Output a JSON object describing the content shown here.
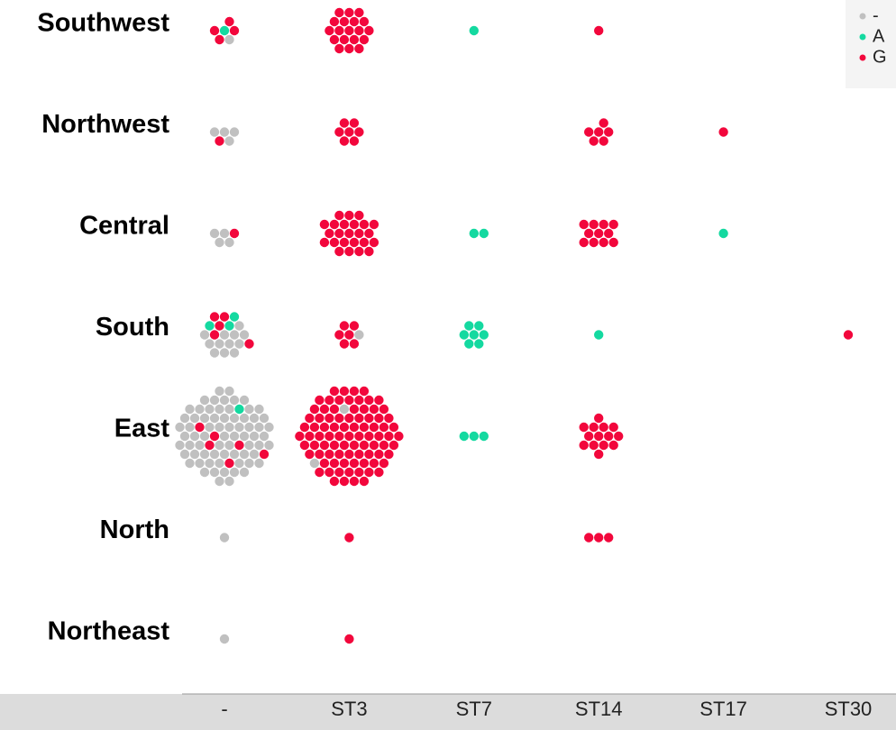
{
  "chart_data": {
    "type": "swarm",
    "categories": [
      "-",
      "ST3",
      "ST7",
      "ST14",
      "ST17",
      "ST30"
    ],
    "rows": [
      "Southwest",
      "Northwest",
      "Central",
      "South",
      "East",
      "North",
      "Northeast"
    ],
    "legend_position": "top-right",
    "series": [
      {
        "name": "-",
        "color": "#c0c0c0",
        "values": [
          [
            1,
            0,
            0,
            0,
            0,
            0
          ],
          [
            4,
            0,
            0,
            0,
            0,
            0
          ],
          [
            4,
            0,
            0,
            0,
            0,
            0
          ],
          [
            12,
            1,
            0,
            0,
            0,
            0
          ],
          [
            70,
            2,
            0,
            0,
            0,
            0
          ],
          [
            1,
            0,
            0,
            0,
            0,
            0
          ],
          [
            1,
            0,
            0,
            0,
            0,
            0
          ]
        ]
      },
      {
        "name": "A",
        "color": "#14d9a0",
        "values": [
          [
            1,
            0,
            1,
            0,
            0,
            0
          ],
          [
            0,
            0,
            0,
            0,
            0,
            0
          ],
          [
            0,
            0,
            2,
            0,
            1,
            0
          ],
          [
            3,
            0,
            7,
            1,
            0,
            0
          ],
          [
            1,
            0,
            3,
            0,
            0,
            0
          ],
          [
            0,
            0,
            0,
            0,
            0,
            0
          ],
          [
            0,
            0,
            0,
            0,
            0,
            0
          ]
        ]
      },
      {
        "name": "G",
        "color": "#f2073c",
        "values": [
          [
            4,
            19,
            0,
            1,
            0,
            0
          ],
          [
            1,
            7,
            0,
            6,
            1,
            0
          ],
          [
            1,
            24,
            0,
            11,
            0,
            0
          ],
          [
            5,
            6,
            0,
            0,
            0,
            1
          ],
          [
            6,
            85,
            0,
            14,
            0,
            0
          ],
          [
            0,
            1,
            0,
            3,
            0,
            0
          ],
          [
            0,
            1,
            0,
            0,
            0,
            0
          ]
        ]
      }
    ]
  }
}
